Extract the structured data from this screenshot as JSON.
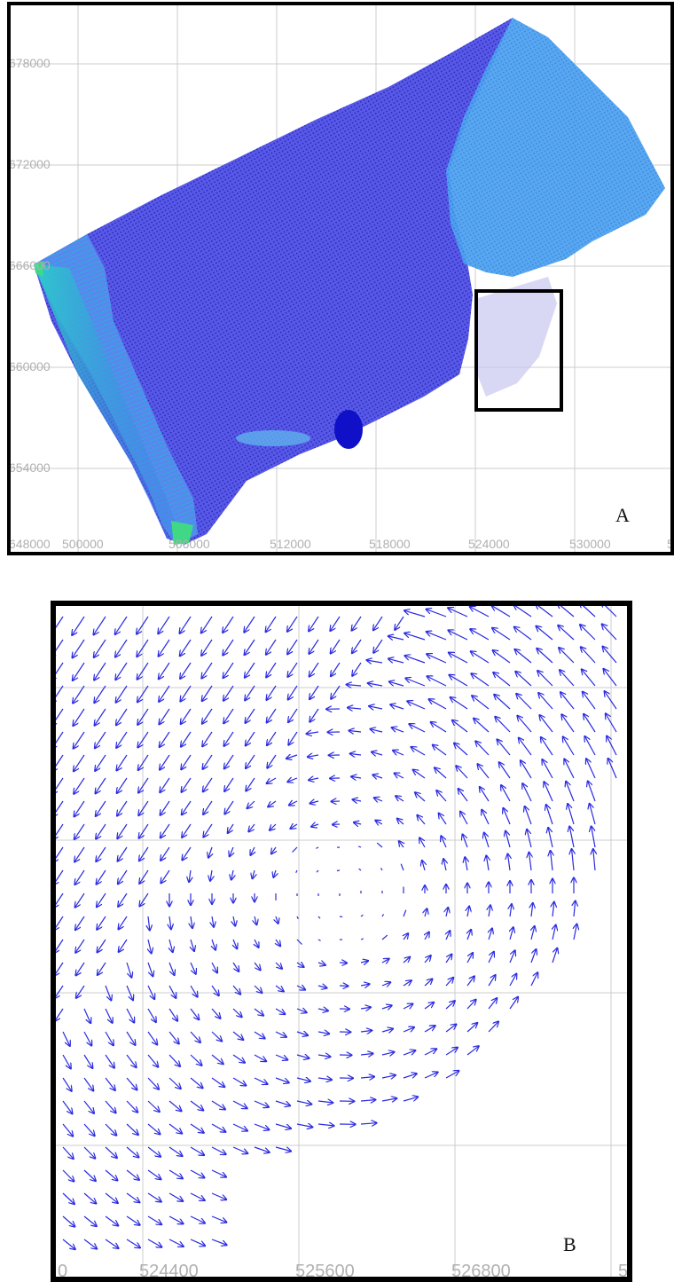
{
  "panel_a": {
    "label": "A",
    "x_ticks": [
      "500000",
      "506000",
      "512000",
      "518000",
      "524000",
      "530000",
      "5"
    ],
    "y_ticks": [
      "678000",
      "672000",
      "666000",
      "660000",
      "654000",
      "648000"
    ],
    "colors": {
      "dominant": "#2a2ad6",
      "upper_right": "#2f8ee8",
      "left_edge": "#22c7d8",
      "tip": "#3fe07a",
      "frame": "#000000"
    }
  },
  "panel_b": {
    "label": "B",
    "x_ticks": [
      "0",
      "524400",
      "525600",
      "526800",
      "5"
    ],
    "colors": {
      "arrows": "#2a2ae0",
      "frame": "#000000"
    }
  }
}
